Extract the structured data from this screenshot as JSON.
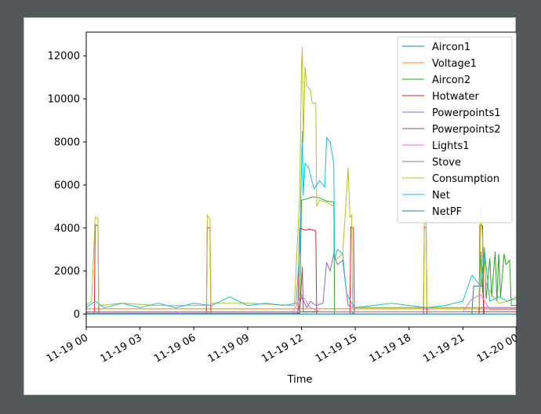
{
  "chart_data": {
    "type": "line",
    "xlabel": "Time",
    "ylabel": "",
    "ylim": [
      -600,
      13100
    ],
    "xlim": [
      "11-19 00",
      "11-20 00"
    ],
    "x_ticks": [
      "11-19 00",
      "11-19 03",
      "11-19 06",
      "11-19 09",
      "11-19 12",
      "11-19 15",
      "11-19 18",
      "11-19 21",
      "11-20 00"
    ],
    "y_ticks": [
      0,
      2000,
      4000,
      6000,
      8000,
      10000,
      12000
    ],
    "grid": false,
    "legend": "top-right",
    "series": [
      {
        "name": "Aircon1",
        "color": "#1f77b4",
        "points": [
          [
            0,
            0
          ],
          [
            11.8,
            0
          ],
          [
            11.9,
            100
          ],
          [
            14.8,
            100
          ],
          [
            14.9,
            0
          ],
          [
            21.5,
            0
          ],
          [
            21.6,
            1300
          ],
          [
            22.1,
            1300
          ],
          [
            22.2,
            0
          ],
          [
            24,
            0
          ]
        ]
      },
      {
        "name": "Voltage1",
        "color": "#ff7f0e",
        "points": [
          [
            0,
            240
          ],
          [
            24,
            240
          ]
        ]
      },
      {
        "name": "Aircon2",
        "color": "#2ca02c",
        "points": [
          [
            0,
            0
          ],
          [
            11.9,
            0
          ],
          [
            12.0,
            5300
          ],
          [
            12.3,
            5350
          ],
          [
            12.6,
            5450
          ],
          [
            13.0,
            5400
          ],
          [
            13.4,
            5250
          ],
          [
            13.8,
            5200
          ],
          [
            13.85,
            0
          ],
          [
            21.9,
            0
          ],
          [
            22.0,
            2900
          ],
          [
            22.1,
            1000
          ],
          [
            22.2,
            3100
          ],
          [
            22.3,
            700
          ],
          [
            22.5,
            2600
          ],
          [
            22.6,
            800
          ],
          [
            22.8,
            2900
          ],
          [
            22.9,
            600
          ],
          [
            23.0,
            2800
          ],
          [
            23.1,
            800
          ],
          [
            23.3,
            2800
          ],
          [
            23.4,
            2300
          ],
          [
            23.6,
            2500
          ],
          [
            23.7,
            400
          ],
          [
            24,
            400
          ]
        ]
      },
      {
        "name": "Hotwater",
        "color": "#d62728",
        "points": [
          [
            0,
            0
          ],
          [
            0.45,
            0
          ],
          [
            0.5,
            4150
          ],
          [
            0.65,
            4100
          ],
          [
            0.7,
            0
          ],
          [
            6.7,
            0
          ],
          [
            6.75,
            4020
          ],
          [
            6.9,
            4000
          ],
          [
            6.95,
            0
          ],
          [
            11.8,
            0
          ],
          [
            11.9,
            4000
          ],
          [
            12.2,
            3900
          ],
          [
            12.5,
            3950
          ],
          [
            12.8,
            3850
          ],
          [
            12.85,
            0
          ],
          [
            14.7,
            0
          ],
          [
            14.75,
            4050
          ],
          [
            14.9,
            4000
          ],
          [
            14.95,
            0
          ],
          [
            18.8,
            0
          ],
          [
            18.85,
            4050
          ],
          [
            18.95,
            4000
          ],
          [
            19.0,
            0
          ],
          [
            21.9,
            0
          ],
          [
            21.95,
            4150
          ],
          [
            22.1,
            4100
          ],
          [
            22.15,
            0
          ],
          [
            24,
            0
          ]
        ]
      },
      {
        "name": "Powerpoints1",
        "color": "#9467bd",
        "points": [
          [
            0,
            100
          ],
          [
            11.8,
            100
          ],
          [
            12.0,
            800
          ],
          [
            12.3,
            300
          ],
          [
            12.5,
            600
          ],
          [
            12.8,
            400
          ],
          [
            13.2,
            500
          ],
          [
            13.4,
            2400
          ],
          [
            13.6,
            2000
          ],
          [
            13.8,
            2800
          ],
          [
            14.0,
            2300
          ],
          [
            14.3,
            2500
          ],
          [
            14.6,
            400
          ],
          [
            15.0,
            300
          ],
          [
            24,
            300
          ]
        ]
      },
      {
        "name": "Powerpoints2",
        "color": "#8c564b",
        "points": [
          [
            0,
            50
          ],
          [
            11.9,
            50
          ],
          [
            12.05,
            2200
          ],
          [
            12.1,
            100
          ],
          [
            24,
            100
          ]
        ]
      },
      {
        "name": "Lights1",
        "color": "#e377c2",
        "points": [
          [
            0,
            50
          ],
          [
            11.5,
            50
          ],
          [
            12.0,
            900
          ],
          [
            12.5,
            300
          ],
          [
            13.0,
            100
          ],
          [
            21.0,
            100
          ],
          [
            21.5,
            700
          ],
          [
            22.0,
            900
          ],
          [
            22.5,
            200
          ],
          [
            24,
            200
          ]
        ]
      },
      {
        "name": "Stove",
        "color": "#7f7f7f",
        "points": [
          [
            0,
            0
          ],
          [
            24,
            0
          ]
        ]
      },
      {
        "name": "Consumption",
        "color": "#bcbd22",
        "points": [
          [
            0,
            400
          ],
          [
            0.3,
            600
          ],
          [
            0.5,
            4500
          ],
          [
            0.65,
            4450
          ],
          [
            0.7,
            400
          ],
          [
            2.0,
            500
          ],
          [
            4.0,
            400
          ],
          [
            6.7,
            400
          ],
          [
            6.75,
            4600
          ],
          [
            6.9,
            4400
          ],
          [
            6.95,
            500
          ],
          [
            9.0,
            500
          ],
          [
            11.6,
            400
          ],
          [
            11.9,
            5500
          ],
          [
            12.0,
            11500
          ],
          [
            12.05,
            12400
          ],
          [
            12.1,
            8000
          ],
          [
            12.2,
            11500
          ],
          [
            12.3,
            10600
          ],
          [
            12.5,
            10400
          ],
          [
            12.6,
            9800
          ],
          [
            12.8,
            9800
          ],
          [
            12.85,
            5000
          ],
          [
            13.0,
            5300
          ],
          [
            13.4,
            5200
          ],
          [
            13.8,
            5000
          ],
          [
            13.85,
            2500
          ],
          [
            14.3,
            2800
          ],
          [
            14.6,
            6800
          ],
          [
            14.7,
            4500
          ],
          [
            14.8,
            4600
          ],
          [
            14.85,
            300
          ],
          [
            16.0,
            300
          ],
          [
            18.8,
            300
          ],
          [
            18.85,
            4300
          ],
          [
            18.95,
            4200
          ],
          [
            19.0,
            300
          ],
          [
            21.9,
            300
          ],
          [
            22.0,
            5000
          ],
          [
            22.1,
            3400
          ],
          [
            22.3,
            1400
          ],
          [
            22.6,
            900
          ],
          [
            23.0,
            500
          ],
          [
            24,
            700
          ]
        ]
      },
      {
        "name": "Net",
        "color": "#17becf",
        "points": [
          [
            0,
            300
          ],
          [
            0.5,
            600
          ],
          [
            1.0,
            300
          ],
          [
            2.0,
            500
          ],
          [
            3.0,
            300
          ],
          [
            4.0,
            500
          ],
          [
            5.0,
            300
          ],
          [
            6.0,
            500
          ],
          [
            7.0,
            400
          ],
          [
            8.0,
            800
          ],
          [
            9.0,
            400
          ],
          [
            10.0,
            500
          ],
          [
            11.0,
            400
          ],
          [
            11.7,
            500
          ],
          [
            11.9,
            3000
          ],
          [
            12.05,
            8500
          ],
          [
            12.1,
            5500
          ],
          [
            12.2,
            7000
          ],
          [
            12.4,
            6800
          ],
          [
            12.7,
            5800
          ],
          [
            13.0,
            6200
          ],
          [
            13.3,
            5900
          ],
          [
            13.4,
            8200
          ],
          [
            13.6,
            8000
          ],
          [
            13.8,
            7000
          ],
          [
            13.85,
            2500
          ],
          [
            14.0,
            3000
          ],
          [
            14.3,
            2800
          ],
          [
            14.5,
            1000
          ],
          [
            14.8,
            500
          ],
          [
            15.0,
            300
          ],
          [
            16.0,
            400
          ],
          [
            17.0,
            500
          ],
          [
            18.0,
            400
          ],
          [
            19.0,
            300
          ],
          [
            20.0,
            400
          ],
          [
            21.0,
            600
          ],
          [
            21.5,
            1800
          ],
          [
            22.0,
            1300
          ],
          [
            22.2,
            3000
          ],
          [
            22.5,
            600
          ],
          [
            23.0,
            800
          ],
          [
            23.5,
            600
          ],
          [
            24,
            800
          ]
        ]
      },
      {
        "name": "NetPF",
        "color": "#1f77b4",
        "points": [
          [
            0,
            0
          ],
          [
            24,
            0
          ]
        ]
      }
    ]
  }
}
